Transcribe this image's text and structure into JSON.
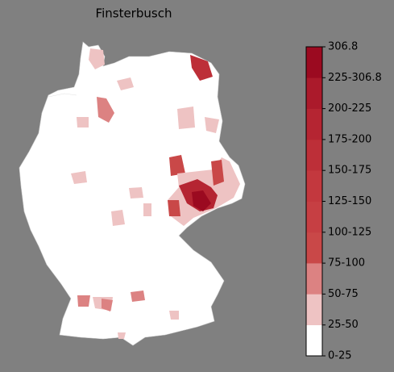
{
  "title": "Finsterbusch",
  "colorbar": {
    "labels": [
      "0-25",
      "25-50",
      "50-75",
      "75-100",
      "100-125",
      "125-150",
      "150-175",
      "175-200",
      "200-225",
      "225-306.8",
      "306.8"
    ],
    "colors": [
      "#ffffff",
      "#eec3c3",
      "#dc8282",
      "#c94848",
      "#c63f43",
      "#c3383e",
      "#bd2f38",
      "#b52532",
      "#ab1a2b",
      "#9b0a20"
    ]
  }
}
